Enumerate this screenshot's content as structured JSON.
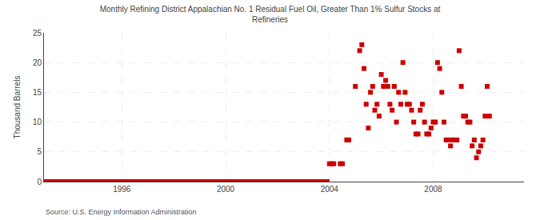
{
  "chart_data": {
    "type": "scatter",
    "title": "Monthly Refining District Appalachian No. 1 Residual Fuel Oil, Greater Than 1% Sulfur Stocks at\nRefineries",
    "ylabel": "Thousand Barrels",
    "annotations": [
      "Source: U.S. Energy Information Administration"
    ],
    "color": "#cc0000",
    "marker": "square",
    "grid": true,
    "xlim": [
      1993.0,
      2011.5
    ],
    "xticks": [
      1996,
      2000,
      2004,
      2008
    ],
    "ylim": [
      0,
      25
    ],
    "yticks": [
      0,
      5,
      10,
      15,
      20,
      25
    ],
    "x": [
      1993.0,
      1993.083,
      1993.167,
      1993.25,
      1993.333,
      1993.417,
      1993.5,
      1993.583,
      1993.667,
      1993.75,
      1993.833,
      1993.917,
      1994.0,
      1994.083,
      1994.167,
      1994.25,
      1994.333,
      1994.417,
      1994.5,
      1994.583,
      1994.667,
      1994.75,
      1994.833,
      1994.917,
      1995.0,
      1995.083,
      1995.167,
      1995.25,
      1995.333,
      1995.417,
      1995.5,
      1995.583,
      1995.667,
      1995.75,
      1995.833,
      1995.917,
      1996.0,
      1996.083,
      1996.167,
      1996.25,
      1996.333,
      1996.417,
      1996.5,
      1996.583,
      1996.667,
      1996.75,
      1996.833,
      1996.917,
      1997.0,
      1997.083,
      1997.167,
      1997.25,
      1997.333,
      1997.417,
      1997.5,
      1997.583,
      1997.667,
      1997.75,
      1997.833,
      1997.917,
      1998.0,
      1998.083,
      1998.167,
      1998.25,
      1998.333,
      1998.417,
      1998.5,
      1998.583,
      1998.667,
      1998.75,
      1998.833,
      1998.917,
      1999.0,
      1999.083,
      1999.167,
      1999.25,
      1999.333,
      1999.417,
      1999.5,
      1999.583,
      1999.667,
      1999.75,
      1999.833,
      1999.917,
      2000.0,
      2000.083,
      2000.167,
      2000.25,
      2000.333,
      2000.417,
      2000.5,
      2000.583,
      2000.667,
      2000.75,
      2000.833,
      2000.917,
      2001.0,
      2001.083,
      2001.167,
      2001.25,
      2001.333,
      2001.417,
      2001.5,
      2001.583,
      2001.667,
      2001.75,
      2001.833,
      2001.917,
      2002.0,
      2002.083,
      2002.167,
      2002.25,
      2002.333,
      2002.417,
      2002.5,
      2002.583,
      2002.667,
      2002.75,
      2002.833,
      2002.917,
      2003.0,
      2003.083,
      2003.167,
      2003.25,
      2003.333,
      2003.417,
      2003.5,
      2003.583,
      2003.667,
      2003.75,
      2003.833,
      2003.917,
      2004.0,
      2004.083,
      2004.167,
      2004.417,
      2004.5,
      2004.667,
      2004.75,
      2005.0,
      2005.167,
      2005.25,
      2005.333,
      2005.417,
      2005.5,
      2005.583,
      2005.667,
      2005.75,
      2005.833,
      2005.917,
      2006.0,
      2006.083,
      2006.167,
      2006.25,
      2006.333,
      2006.417,
      2006.5,
      2006.583,
      2006.667,
      2006.75,
      2006.833,
      2006.917,
      2007.0,
      2007.083,
      2007.167,
      2007.25,
      2007.333,
      2007.417,
      2007.5,
      2007.583,
      2007.667,
      2007.75,
      2007.833,
      2007.917,
      2008.0,
      2008.083,
      2008.167,
      2008.25,
      2008.333,
      2008.417,
      2008.5,
      2008.583,
      2008.667,
      2008.75,
      2008.833,
      2008.917,
      2009.0,
      2009.083,
      2009.167,
      2009.25,
      2009.333,
      2009.417,
      2009.5,
      2009.583,
      2009.667,
      2009.75,
      2009.833,
      2009.917,
      2010.0,
      2010.083,
      2010.167
    ],
    "values": [
      0,
      0,
      0,
      0,
      0,
      0,
      0,
      0,
      0,
      0,
      0,
      0,
      0,
      0,
      0,
      0,
      0,
      0,
      0,
      0,
      0,
      0,
      0,
      0,
      0,
      0,
      0,
      0,
      0,
      0,
      0,
      0,
      0,
      0,
      0,
      0,
      0,
      0,
      0,
      0,
      0,
      0,
      0,
      0,
      0,
      0,
      0,
      0,
      0,
      0,
      0,
      0,
      0,
      0,
      0,
      0,
      0,
      0,
      0,
      0,
      0,
      0,
      0,
      0,
      0,
      0,
      0,
      0,
      0,
      0,
      0,
      0,
      0,
      0,
      0,
      0,
      0,
      0,
      0,
      0,
      0,
      0,
      0,
      0,
      0,
      0,
      0,
      0,
      0,
      0,
      0,
      0,
      0,
      0,
      0,
      0,
      0,
      0,
      0,
      0,
      0,
      0,
      0,
      0,
      0,
      0,
      0,
      0,
      0,
      0,
      0,
      0,
      0,
      0,
      0,
      0,
      0,
      0,
      0,
      0,
      0,
      0,
      0,
      0,
      0,
      0,
      0,
      0,
      0,
      0,
      0,
      0,
      3,
      3,
      3,
      3,
      3,
      7,
      7,
      16,
      22,
      23,
      19,
      13,
      9,
      15,
      16,
      12,
      13,
      11,
      18,
      16,
      17,
      16,
      13,
      12,
      16,
      10,
      15,
      13,
      20,
      15,
      13,
      13,
      12,
      10,
      8,
      8,
      12,
      13,
      10,
      8,
      8,
      9,
      10,
      10,
      20,
      19,
      15,
      10,
      7,
      7,
      6,
      7,
      7,
      7,
      22,
      16,
      11,
      11,
      10,
      10,
      6,
      7,
      4,
      5,
      6,
      7,
      11,
      16,
      11
    ]
  }
}
